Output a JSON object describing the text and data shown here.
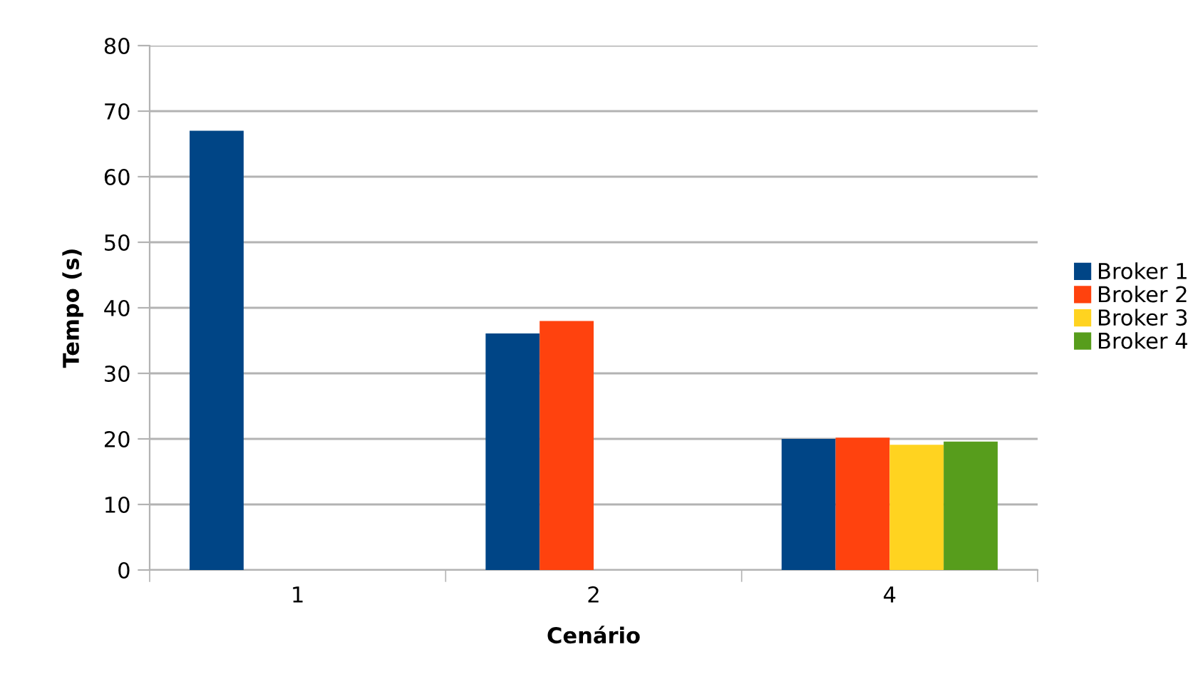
{
  "chart_data": {
    "type": "bar",
    "xlabel": "Cenário",
    "ylabel": "Tempo (s)",
    "categories": [
      "1",
      "2",
      "4"
    ],
    "series": [
      {
        "name": "Broker 1",
        "color": "#004586",
        "values": [
          67.0,
          36.1,
          20.0
        ]
      },
      {
        "name": "Broker 2",
        "color": "#ff420e",
        "values": [
          null,
          38.0,
          20.2
        ]
      },
      {
        "name": "Broker 3",
        "color": "#ffd320",
        "values": [
          null,
          null,
          19.1
        ]
      },
      {
        "name": "Broker 4",
        "color": "#579d1c",
        "values": [
          null,
          null,
          19.6
        ]
      }
    ],
    "ylim": [
      0,
      80
    ],
    "yticks": [
      0,
      10,
      20,
      30,
      40,
      50,
      60,
      70,
      80
    ],
    "grid": "y",
    "legend": "right"
  }
}
